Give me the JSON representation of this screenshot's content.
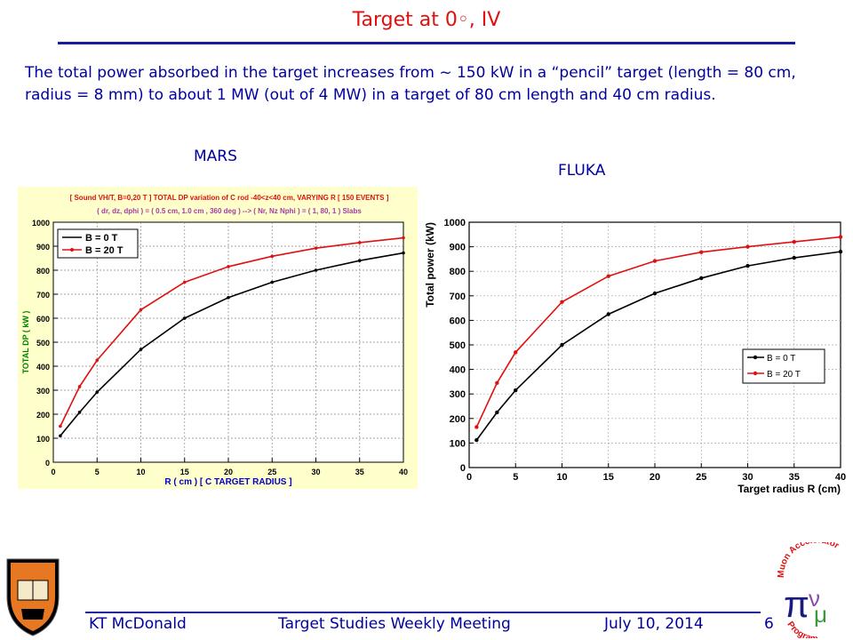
{
  "slide": {
    "title": "Target at 0◦, IV",
    "intro": "The  total power absorbed in the target increases from ~ 150 kW in a “pencil” target (length = 80 cm, radius = 8 mm) to about 1 MW (out of 4 MW) in a target of 80 cm length and 40 cm radius.",
    "mars_label": "MARS",
    "fluka_label": "FLUKA",
    "footer": {
      "author": "KT McDonald",
      "meeting": "Target Studies Weekly Meeting",
      "date": "July 10, 2014",
      "page": "6"
    },
    "logo_right_text": "Muon Accelerator Program"
  },
  "chart_data": [
    {
      "type": "line",
      "source": "MARS",
      "title": "[ Sound VH/T, B=0,20 T ] TOTAL DP variation of C rod  -40<z<40 cm,  VARYING R [ 150 EVENTS ]",
      "subtitle": "( dr, dz, dphi ) = ( 0.5 cm, 1.0 cm , 360 deg ) --> ( Nr, Nz Nphi ) = ( 1, 80, 1 ) Slabs",
      "xlabel": "R ( cm ) [ C  TARGET RADIUS ]",
      "ylabel": "TOTAL DP ( kW )",
      "xlim": [
        0,
        40
      ],
      "ylim": [
        0,
        1000
      ],
      "xticks": [
        0,
        5,
        10,
        15,
        20,
        25,
        30,
        35,
        40
      ],
      "yticks": [
        0,
        100,
        200,
        300,
        400,
        500,
        600,
        700,
        800,
        900,
        1000
      ],
      "grid": "dotted",
      "legend": "top-left",
      "series": [
        {
          "name": "B = 0  T",
          "color": "#000000",
          "x": [
            0.8,
            3,
            5,
            10,
            15,
            20,
            25,
            30,
            35,
            40
          ],
          "y": [
            110,
            208,
            292,
            470,
            600,
            686,
            750,
            800,
            840,
            872
          ]
        },
        {
          "name": "B = 20  T",
          "color": "#e01010",
          "x": [
            0.8,
            3,
            5,
            10,
            15,
            20,
            25,
            30,
            35,
            40
          ],
          "y": [
            150,
            315,
            425,
            635,
            750,
            815,
            858,
            892,
            915,
            935
          ]
        }
      ]
    },
    {
      "type": "line",
      "source": "FLUKA",
      "xlabel": "Target radius R (cm)",
      "ylabel": "Total power (kW)",
      "xlim": [
        0,
        40
      ],
      "ylim": [
        0,
        1000
      ],
      "xticks": [
        0,
        5,
        10,
        15,
        20,
        25,
        30,
        35,
        40
      ],
      "yticks": [
        0,
        100,
        200,
        300,
        400,
        500,
        600,
        700,
        800,
        900,
        1000
      ],
      "grid": "dotted",
      "legend": "lower-right",
      "series": [
        {
          "name": "B = 0 T",
          "color": "#000000",
          "x": [
            0.8,
            3,
            5,
            10,
            15,
            20,
            25,
            30,
            35,
            40
          ],
          "y": [
            112,
            225,
            315,
            500,
            625,
            710,
            772,
            822,
            855,
            880
          ]
        },
        {
          "name": "B = 20 T",
          "color": "#e01010",
          "x": [
            0.8,
            3,
            5,
            10,
            15,
            20,
            25,
            30,
            35,
            40
          ],
          "y": [
            165,
            345,
            470,
            675,
            780,
            842,
            878,
            900,
            920,
            940
          ]
        }
      ]
    }
  ]
}
